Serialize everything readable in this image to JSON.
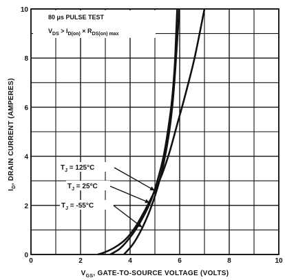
{
  "chart_data": {
    "type": "line",
    "xlim": [
      0,
      10
    ],
    "ylim": [
      0,
      10
    ],
    "x_ticks": [
      "0",
      "2",
      "4",
      "6",
      "8",
      "10"
    ],
    "y_ticks": [
      "0",
      "2",
      "4",
      "6",
      "8",
      "10"
    ],
    "grid": true,
    "xlabel": {
      "main": "V",
      "sub": "GS",
      "rest": ", GATE-TO-SOURCE VOLTAGE (VOLTS)"
    },
    "ylabel": {
      "main": "I",
      "sub": "D",
      "rest": ", DRAIN CURRENT (AMPERES)"
    },
    "annotations": {
      "test_line1": "80 μs PULSE TEST",
      "test_line2": {
        "a": "V",
        "a_sub": "DS",
        "b": " > I",
        "b_sub": "D(on)",
        "c": " × R",
        "c_sub": "DS(on) max"
      }
    },
    "series": [
      {
        "label": {
          "main": "T",
          "sub": "J",
          "rest": " = 125°C"
        },
        "x": [
          2.7,
          3.0,
          3.4,
          3.8,
          4.2,
          4.6,
          5.0,
          5.3,
          5.6,
          5.9,
          6.2,
          6.6,
          7.0
        ],
        "y": [
          0.0,
          0.1,
          0.3,
          0.6,
          1.1,
          1.8,
          2.6,
          3.3,
          4.2,
          5.3,
          6.4,
          8.0,
          10.0
        ]
      },
      {
        "label": {
          "main": "T",
          "sub": "J",
          "rest": " = 25°C"
        },
        "x": [
          3.2,
          3.6,
          4.0,
          4.4,
          4.8,
          5.1,
          5.35,
          5.55,
          5.7,
          5.8,
          5.85,
          5.9
        ],
        "y": [
          0.0,
          0.25,
          0.7,
          1.3,
          2.1,
          3.0,
          4.0,
          5.2,
          6.4,
          7.7,
          8.8,
          10.0
        ]
      },
      {
        "label": {
          "main": "T",
          "sub": "J",
          "rest": " = -55°C"
        },
        "x": [
          3.75,
          4.1,
          4.45,
          4.8,
          5.1,
          5.35,
          5.55,
          5.7,
          5.8,
          5.88,
          5.94,
          5.98
        ],
        "y": [
          0.0,
          0.4,
          1.0,
          1.8,
          2.7,
          3.7,
          4.8,
          6.0,
          7.2,
          8.4,
          9.3,
          10.0
        ]
      }
    ]
  }
}
